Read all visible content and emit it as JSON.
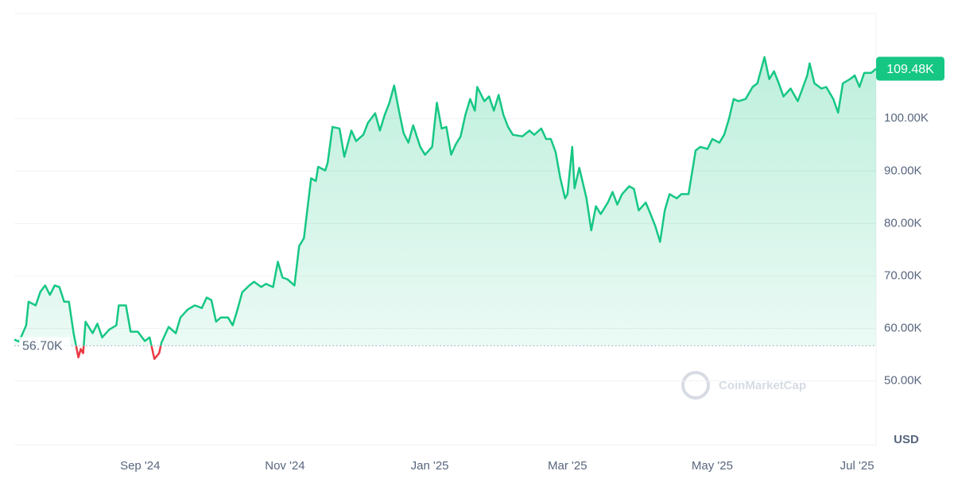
{
  "chart_data": {
    "type": "line",
    "color": "#16c784",
    "below_color": "#ea3943",
    "grid": true,
    "watermark": "CoinMarketCap",
    "currency": "USD",
    "xlim": [
      0,
      363
    ],
    "xticks": [
      {
        "value": 53,
        "label": "Sep '24"
      },
      {
        "value": 114,
        "label": "Nov '24"
      },
      {
        "value": 175,
        "label": "Jan '25"
      },
      {
        "value": 233,
        "label": "Mar '25"
      },
      {
        "value": 294,
        "label": "May '25"
      },
      {
        "value": 355,
        "label": "Jul '25"
      }
    ],
    "ylim": [
      38000,
      120000
    ],
    "yticks": [
      {
        "value": 50000,
        "label": "50.00K"
      },
      {
        "value": 60000,
        "label": "60.00K"
      },
      {
        "value": 70000,
        "label": "70.00K"
      },
      {
        "value": 80000,
        "label": "80.00K"
      },
      {
        "value": 90000,
        "label": "90.00K"
      },
      {
        "value": 100000,
        "label": "100.00K"
      }
    ],
    "baseline": {
      "value": 56700,
      "label": "56.70K"
    },
    "current_price": {
      "value": 109480,
      "label": "109.48K"
    },
    "x": [
      0,
      2,
      5,
      6,
      9,
      11,
      13,
      15,
      17,
      19,
      21,
      23,
      25,
      27,
      28,
      29,
      30,
      33,
      35,
      37,
      40,
      43,
      44,
      47,
      49,
      52,
      55,
      57,
      59,
      61,
      62,
      65,
      68,
      70,
      73,
      76,
      79,
      81,
      83,
      85,
      87,
      90,
      92,
      94,
      96,
      99,
      101,
      104,
      106,
      109,
      111,
      113,
      115,
      118,
      120,
      122,
      125,
      127,
      128,
      131,
      132,
      134,
      137,
      139,
      142,
      144,
      147,
      149,
      152,
      154,
      156,
      158,
      160,
      162,
      164,
      166,
      168,
      171,
      173,
      176,
      178,
      180,
      182,
      184,
      186,
      188,
      190,
      192,
      194,
      195,
      198,
      200,
      202,
      204,
      206,
      208,
      210,
      214,
      217,
      219,
      222,
      224,
      226,
      228,
      230,
      232,
      233,
      235,
      236,
      238,
      241,
      243,
      245,
      247,
      250,
      252,
      254,
      256,
      259,
      261,
      263,
      266,
      268,
      270,
      272,
      274,
      276,
      279,
      281,
      284,
      287,
      289,
      292,
      294,
      297,
      299,
      301,
      303,
      305,
      308,
      311,
      313,
      316,
      318,
      320,
      322,
      324,
      327,
      330,
      332,
      334,
      335,
      337,
      340,
      342,
      345,
      347,
      349,
      352,
      354,
      356,
      358,
      361,
      363
    ],
    "values": [
      57900,
      57500,
      60600,
      65100,
      64400,
      67000,
      68200,
      66400,
      68200,
      67900,
      65100,
      65100,
      59000,
      54500,
      56100,
      55300,
      61300,
      59100,
      60900,
      58300,
      59800,
      60600,
      64400,
      64400,
      59400,
      59400,
      57600,
      58300,
      54200,
      55300,
      57300,
      60300,
      59100,
      62100,
      63600,
      64400,
      63900,
      65900,
      65400,
      61300,
      62100,
      62100,
      60600,
      63600,
      66900,
      68200,
      68900,
      67900,
      68500,
      67900,
      72700,
      69700,
      69400,
      68200,
      75700,
      77200,
      88600,
      88100,
      90800,
      90100,
      91600,
      98400,
      98100,
      92700,
      97700,
      95700,
      96900,
      99200,
      101000,
      97700,
      100700,
      103000,
      106300,
      101500,
      97200,
      95400,
      98700,
      94600,
      93100,
      94600,
      103000,
      98100,
      98400,
      93100,
      95100,
      96600,
      100700,
      103700,
      101500,
      106000,
      103300,
      104200,
      101500,
      104500,
      100700,
      98400,
      96900,
      96600,
      97700,
      96900,
      98100,
      96100,
      96100,
      93600,
      88600,
      84800,
      85600,
      94600,
      86700,
      90600,
      84800,
      78700,
      83300,
      81800,
      84000,
      86000,
      83600,
      85600,
      87100,
      86600,
      82500,
      84000,
      81800,
      79500,
      76500,
      82500,
      85600,
      84800,
      85600,
      85600,
      93900,
      94600,
      94200,
      96100,
      95400,
      96900,
      99900,
      103700,
      103300,
      103700,
      106000,
      106700,
      111700,
      107500,
      109000,
      106700,
      104200,
      105700,
      103300,
      105700,
      108200,
      110500,
      106700,
      105700,
      106000,
      103700,
      101100,
      106700,
      107500,
      108200,
      106000,
      108700,
      108700,
      109480
    ]
  }
}
